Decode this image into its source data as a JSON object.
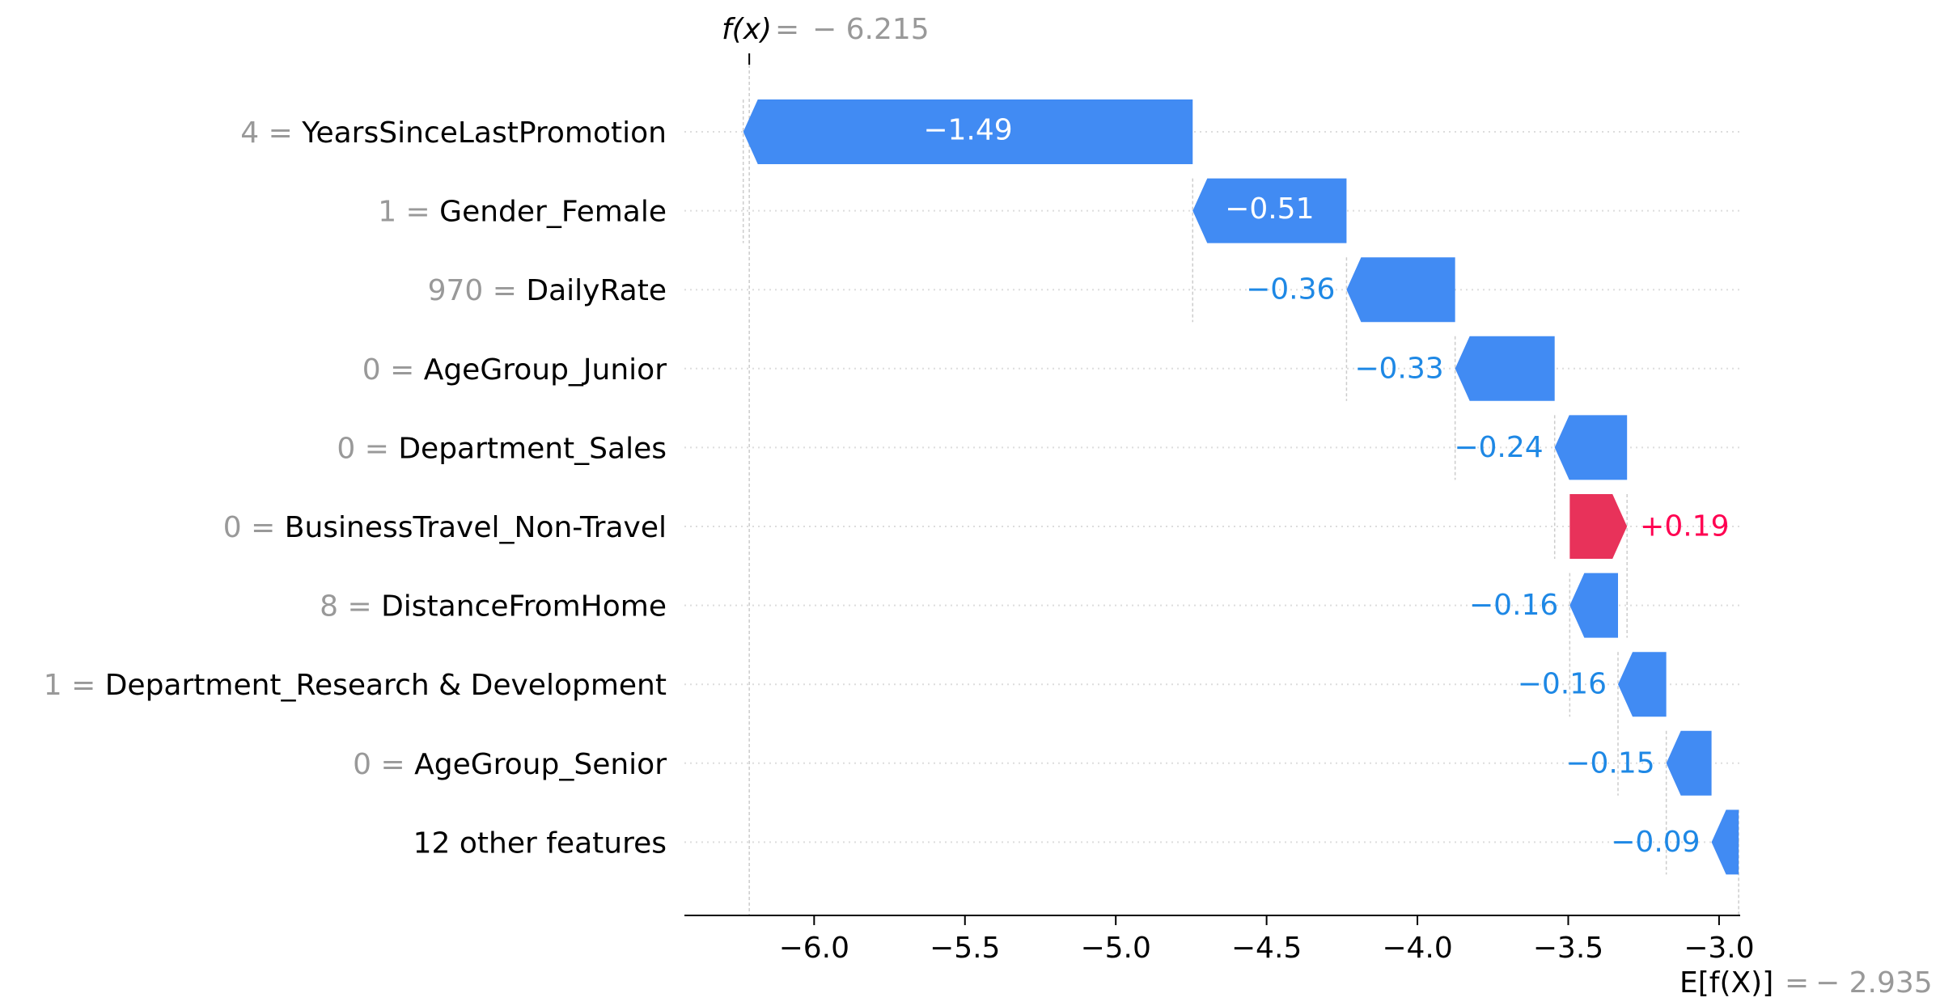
{
  "chart_data": {
    "type": "waterfall",
    "fx_label": "f(x)",
    "fx_value": "− 6.215",
    "fx": -6.215,
    "base_label": "E[f(X)]",
    "base_value": "− 2.935",
    "base": -2.935,
    "xlim": [
      -6.43,
      -2.93
    ],
    "xticks": [
      -6.0,
      -5.5,
      -5.0,
      -4.5,
      -4.0,
      -3.5,
      -3.0
    ],
    "xtick_labels": [
      "−6.0",
      "−5.5",
      "−5.0",
      "−4.5",
      "−4.0",
      "−3.5",
      "−3.0"
    ],
    "features": [
      {
        "value": "4",
        "name": "YearsSinceLastPromotion",
        "contribution": -1.49,
        "label": "−1.49"
      },
      {
        "value": "1",
        "name": "Gender_Female",
        "contribution": -0.51,
        "label": "−0.51"
      },
      {
        "value": "970",
        "name": "DailyRate",
        "contribution": -0.36,
        "label": "−0.36"
      },
      {
        "value": "0",
        "name": "AgeGroup_Junior",
        "contribution": -0.33,
        "label": "−0.33"
      },
      {
        "value": "0",
        "name": "Department_Sales",
        "contribution": -0.24,
        "label": "−0.24"
      },
      {
        "value": "0",
        "name": "BusinessTravel_Non-Travel",
        "contribution": 0.19,
        "label": "+0.19"
      },
      {
        "value": "8",
        "name": "DistanceFromHome",
        "contribution": -0.16,
        "label": "−0.16"
      },
      {
        "value": "1",
        "name": "Department_Research & Development",
        "contribution": -0.16,
        "label": "−0.16"
      },
      {
        "value": "0",
        "name": "AgeGroup_Senior",
        "contribution": -0.15,
        "label": "−0.15"
      },
      {
        "value": "",
        "name": "12 other features",
        "contribution": -0.09,
        "label": "−0.09"
      }
    ],
    "colors": {
      "negative": "#1e88e5",
      "negative_bar": "#418bf3",
      "positive": "#ff0051",
      "positive_bar": "#e8325a",
      "gray_text": "#999999"
    }
  }
}
